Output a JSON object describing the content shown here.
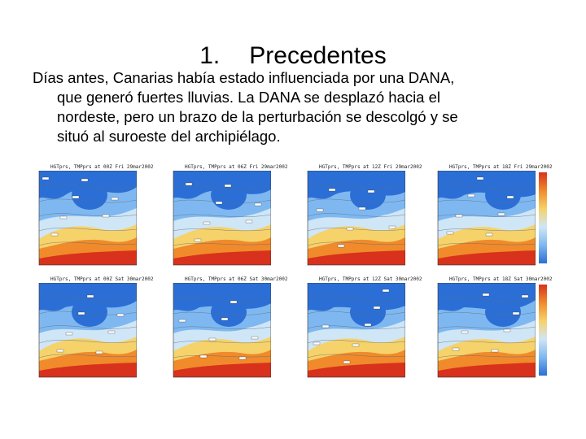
{
  "heading": {
    "number": "1.",
    "text": "Precedentes"
  },
  "paragraph": {
    "lines": [
      "Días antes, Canarias había estado influenciada por una DANA,",
      "que generó fuertes lluvias. La DANA se desplazó hacia el",
      "nordeste, pero un  brazo de la perturbación se descolgó y se",
      "situó al suroeste del archipiélago."
    ]
  },
  "maps": {
    "captions": [
      "HGTprs, TMPprs at 00Z Fri 29mar2002",
      "HGTprs, TMPprs at 06Z Fri 29mar2002",
      "HGTprs, TMPprs at 12Z Fri 29mar2002",
      "HGTprs, TMPprs at 18Z Fri 29mar2002",
      "HGTprs, TMPprs at 00Z Sat 30mar2002",
      "HGTprs, TMPprs at 06Z Sat 30mar2002",
      "HGTprs, TMPprs at 12Z Sat 30mar2002",
      "HGTprs, TMPprs at 18Z Sat 30mar2002"
    ]
  },
  "colors": {
    "cold": "#2b6fd6",
    "cool": "#7fb8f0",
    "mild": "#cfe6f7",
    "warm": "#f6d26a",
    "hot": "#f08a2b",
    "hottest": "#d8311c"
  }
}
